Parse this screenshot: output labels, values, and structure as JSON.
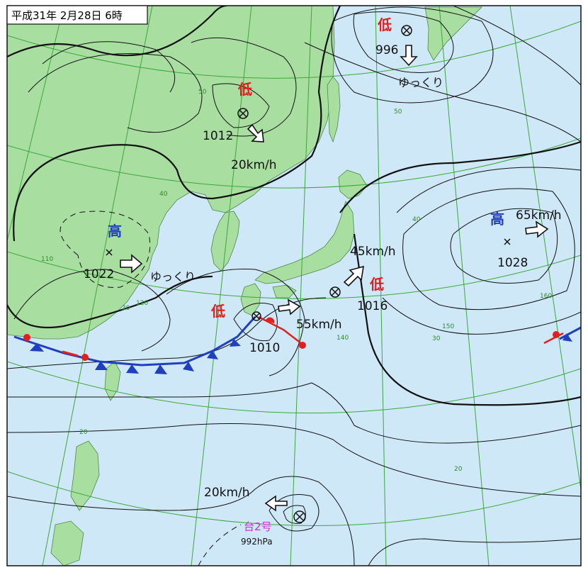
{
  "title": "平成31年 2月28日 6時",
  "colors": {
    "sea": "#cfe8f7",
    "land": "#a9dea1",
    "grid": "#3aa83a",
    "isobar": "#111111",
    "high": "#1f3fbf",
    "low": "#e02020",
    "cold_front": "#1f3fbf",
    "warm_front": "#e02020",
    "typhoon": "#e020e0"
  },
  "lat_labels": [
    "50",
    "50",
    "40",
    "40",
    "30",
    "30",
    "20",
    "20"
  ],
  "lon_labels": [
    "110",
    "120",
    "140",
    "150",
    "160"
  ],
  "systems": [
    {
      "kind_label": "低",
      "pressure": "996",
      "motion": "ゆっくり",
      "symbol": "circle-x-icon"
    },
    {
      "kind_label": "低",
      "pressure": "1012",
      "motion": "20km/h",
      "symbol": "circle-x-icon"
    },
    {
      "kind_label": "高",
      "pressure": "1022",
      "motion": "ゆっくり",
      "symbol": "x-icon"
    },
    {
      "kind_label": "低",
      "pressure": "1010",
      "motion": "55km/h",
      "symbol": "circle-x-icon"
    },
    {
      "kind_label": "低",
      "pressure": "1016",
      "motion": "45km/h",
      "symbol": "circle-x-icon"
    },
    {
      "kind_label": "高",
      "pressure": "1028",
      "motion": "65km/h",
      "symbol": "x-icon"
    },
    {
      "kind_label": "台2号",
      "pressure": "992hPa",
      "motion": "20km/h",
      "symbol": "typhoon-center-icon"
    }
  ]
}
